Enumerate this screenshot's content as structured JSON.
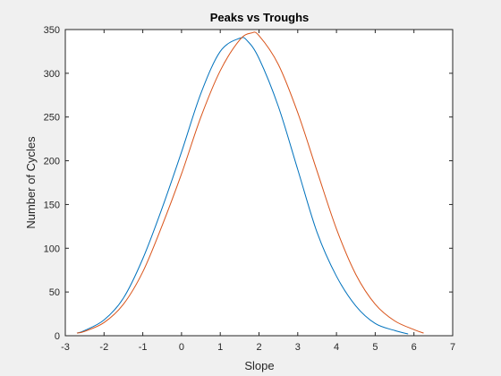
{
  "chart_data": {
    "type": "line",
    "title": "Peaks vs Troughs",
    "xlabel": "Slope",
    "ylabel": "Number of Cycles",
    "xlim": [
      -3,
      7
    ],
    "ylim": [
      0,
      350
    ],
    "xticks": [
      -3,
      -2,
      -1,
      0,
      1,
      2,
      3,
      4,
      5,
      6,
      7
    ],
    "yticks": [
      0,
      50,
      100,
      150,
      200,
      250,
      300,
      350
    ],
    "grid": false,
    "series": [
      {
        "color": "#0072BD",
        "x": [
          -2.7,
          -2.5,
          -2.0,
          -1.5,
          -1.0,
          -0.5,
          0.0,
          0.5,
          1.0,
          1.5,
          1.7,
          2.0,
          2.5,
          3.0,
          3.5,
          4.0,
          4.5,
          5.0,
          5.5,
          5.85
        ],
        "y": [
          3,
          6,
          18,
          43,
          88,
          146,
          210,
          277,
          325,
          340,
          337,
          317,
          262,
          190,
          118,
          68,
          34,
          14,
          6,
          2
        ]
      },
      {
        "color": "#D95319",
        "x": [
          -2.7,
          -2.5,
          -2.0,
          -1.5,
          -1.0,
          -0.5,
          0.0,
          0.5,
          1.0,
          1.5,
          1.8,
          2.0,
          2.5,
          3.0,
          3.5,
          4.0,
          4.5,
          5.0,
          5.5,
          6.0,
          6.25
        ],
        "y": [
          3,
          5,
          15,
          36,
          73,
          126,
          185,
          250,
          303,
          338,
          346,
          343,
          310,
          255,
          188,
          122,
          70,
          36,
          17,
          7,
          3
        ]
      }
    ]
  }
}
